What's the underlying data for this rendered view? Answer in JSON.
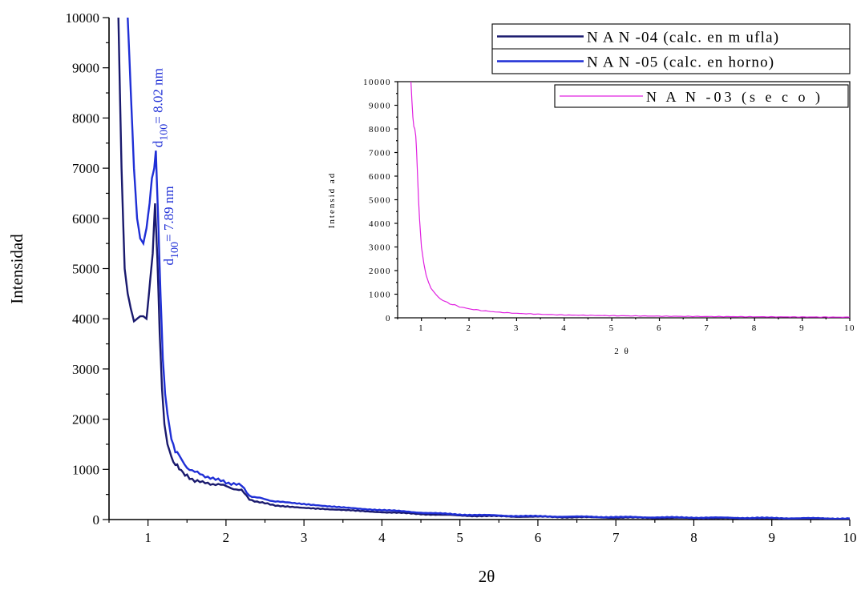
{
  "chart_data": [
    {
      "type": "line",
      "title": "",
      "xlabel": "2θ",
      "ylabel": "Intensidad",
      "xlim": [
        0.5,
        10
      ],
      "ylim": [
        0,
        10000
      ],
      "x_ticks": [
        "1",
        "2",
        "3",
        "4",
        "5",
        "6",
        "7",
        "8",
        "9",
        "10"
      ],
      "y_ticks": [
        "0",
        "1000",
        "2000",
        "3000",
        "4000",
        "5000",
        "6000",
        "7000",
        "8000",
        "9000",
        "10000"
      ],
      "legend_position": "top-right",
      "grid": false,
      "series": [
        {
          "name": "N A N -04  (calc. en  m ufla)",
          "color": "#1a1a6e",
          "x": [
            0.62,
            0.66,
            0.7,
            0.74,
            0.78,
            0.82,
            0.86,
            0.9,
            0.94,
            0.98,
            1.0,
            1.03,
            1.06,
            1.09,
            1.12,
            1.15,
            1.18,
            1.21,
            1.25,
            1.3,
            1.35,
            1.4,
            1.45,
            1.5,
            1.6,
            1.7,
            1.8,
            1.9,
            2.0,
            2.1,
            2.2,
            2.3,
            2.5,
            2.7,
            3.0,
            3.3,
            3.6,
            4.0,
            4.5,
            5.0,
            5.5,
            6.0,
            7.0,
            8.0,
            9.0,
            10.0
          ],
          "y": [
            10000,
            7000,
            5000,
            4500,
            4200,
            3950,
            4000,
            4050,
            4050,
            4000,
            4300,
            4800,
            5300,
            6300,
            5200,
            3700,
            2600,
            1900,
            1500,
            1250,
            1100,
            1000,
            950,
            880,
            780,
            730,
            720,
            700,
            660,
            620,
            580,
            400,
            320,
            270,
            230,
            200,
            180,
            150,
            110,
            80,
            65,
            55,
            40,
            30,
            22,
            15
          ]
        },
        {
          "name": "N A N -05  (calc. en  horno)",
          "color": "#1f2fd6",
          "x": [
            0.74,
            0.78,
            0.82,
            0.86,
            0.9,
            0.94,
            0.98,
            1.02,
            1.05,
            1.08,
            1.1,
            1.13,
            1.16,
            1.19,
            1.22,
            1.25,
            1.3,
            1.35,
            1.4,
            1.5,
            1.6,
            1.7,
            1.8,
            1.9,
            2.0,
            2.1,
            2.2,
            2.3,
            2.5,
            2.7,
            3.0,
            3.3,
            3.6,
            4.0,
            4.5,
            5.0,
            5.5,
            6.0,
            7.0,
            8.0,
            9.0,
            10.0
          ],
          "y": [
            10000,
            8500,
            7000,
            6000,
            5600,
            5500,
            5800,
            6300,
            6800,
            7000,
            7350,
            6000,
            4500,
            3200,
            2500,
            2100,
            1600,
            1400,
            1250,
            1050,
            950,
            870,
            850,
            780,
            740,
            720,
            670,
            480,
            400,
            350,
            300,
            260,
            230,
            190,
            140,
            100,
            80,
            65,
            50,
            40,
            30,
            20
          ]
        }
      ],
      "annotations": [
        {
          "text_main": "d",
          "text_sub": "100",
          "text_value": "= 8.02 nm",
          "x": 1.1,
          "y": 7350,
          "color": "#1f2fd6"
        },
        {
          "text_main": "d",
          "text_sub": "100",
          "text_value": "= 7.89 nm",
          "x": 1.24,
          "y": 5000,
          "color": "#1f2fd6"
        }
      ]
    },
    {
      "type": "line",
      "title": "",
      "xlabel": "2 θ",
      "ylabel": "Intensid ad",
      "xlim": [
        0.5,
        10
      ],
      "ylim": [
        0,
        10000
      ],
      "x_ticks": [
        "1",
        "2",
        "3",
        "4",
        "5",
        "6",
        "7",
        "8",
        "9",
        "10"
      ],
      "y_ticks": [
        "0",
        "1000",
        "2000",
        "3000",
        "4000",
        "5000",
        "6000",
        "7000",
        "8000",
        "9000",
        "10000"
      ],
      "legend_position": "top-right",
      "grid": false,
      "series": [
        {
          "name": "N A N -03  (s e c o )",
          "color": "#e020e0",
          "x": [
            0.78,
            0.8,
            0.82,
            0.84,
            0.86,
            0.88,
            0.9,
            0.92,
            0.94,
            0.96,
            0.98,
            1.0,
            1.05,
            1.1,
            1.15,
            1.2,
            1.3,
            1.4,
            1.5,
            1.6,
            1.8,
            2.0,
            2.3,
            2.6,
            3.0,
            3.5,
            4.0,
            5.0,
            6.0,
            7.0,
            8.0,
            9.0,
            10.0
          ],
          "y": [
            10000,
            9200,
            8500,
            8100,
            8000,
            7700,
            7000,
            6000,
            5000,
            4200,
            3600,
            3000,
            2300,
            1800,
            1500,
            1250,
            1000,
            800,
            680,
            600,
            470,
            380,
            300,
            240,
            190,
            150,
            120,
            90,
            70,
            55,
            45,
            35,
            25
          ]
        }
      ]
    }
  ]
}
